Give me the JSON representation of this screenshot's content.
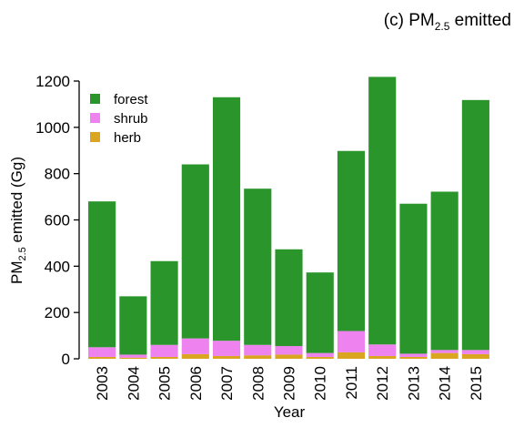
{
  "chart_data": {
    "type": "stacked_bar",
    "title": {
      "main": "(c) PM",
      "sub": "2.5",
      "rest": " emitted"
    },
    "y_label": {
      "main": "PM",
      "sub": "2.5",
      "rest": " emitted (Gg)"
    },
    "x_label": "Year",
    "categories": [
      "2003",
      "2004",
      "2005",
      "2006",
      "2007",
      "2008",
      "2009",
      "2010",
      "2011",
      "2012",
      "2013",
      "2014",
      "2015"
    ],
    "series": [
      {
        "name": "forest",
        "color": "#2a952a",
        "values": [
          630,
          252,
          362,
          752,
          1052,
          675,
          418,
          348,
          778,
          1156,
          648,
          684,
          1080
        ]
      },
      {
        "name": "shrub",
        "color": "#ee82ee",
        "values": [
          42,
          13,
          52,
          68,
          66,
          45,
          37,
          17,
          92,
          50,
          14,
          13,
          18
        ]
      },
      {
        "name": "herb",
        "color": "#daa520",
        "values": [
          8,
          5,
          8,
          20,
          12,
          15,
          18,
          8,
          28,
          12,
          8,
          25,
          20
        ]
      }
    ],
    "ylim": [
      0,
      1200
    ],
    "yticks": [
      0,
      200,
      400,
      600,
      800,
      1000,
      1200
    ],
    "legend": "upper left"
  }
}
